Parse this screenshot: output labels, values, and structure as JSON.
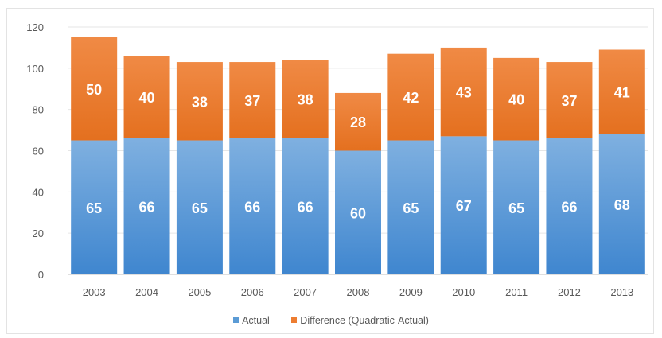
{
  "chart_data": {
    "type": "bar",
    "stacked": true,
    "categories": [
      "2003",
      "2004",
      "2005",
      "2006",
      "2007",
      "2008",
      "2009",
      "2010",
      "2011",
      "2012",
      "2013"
    ],
    "series": [
      {
        "name": "Actual",
        "values": [
          65,
          66,
          65,
          66,
          66,
          60,
          65,
          67,
          65,
          66,
          68
        ],
        "color": "#5b9bd5"
      },
      {
        "name": "Difference (Quadratic-Actual)",
        "values": [
          50,
          40,
          38,
          37,
          38,
          28,
          42,
          43,
          40,
          37,
          41
        ],
        "color": "#ed7d31"
      }
    ],
    "ylim": [
      0,
      120
    ],
    "yticks": [
      0,
      20,
      40,
      60,
      80,
      100,
      120
    ],
    "grid": true,
    "data_labels": true,
    "legend_position": "bottom"
  }
}
